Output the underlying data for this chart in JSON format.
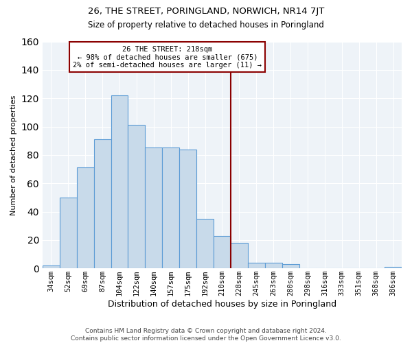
{
  "title": "26, THE STREET, PORINGLAND, NORWICH, NR14 7JT",
  "subtitle": "Size of property relative to detached houses in Poringland",
  "xlabel": "Distribution of detached houses by size in Poringland",
  "ylabel": "Number of detached properties",
  "bar_labels": [
    "34sqm",
    "52sqm",
    "69sqm",
    "87sqm",
    "104sqm",
    "122sqm",
    "140sqm",
    "157sqm",
    "175sqm",
    "192sqm",
    "210sqm",
    "228sqm",
    "245sqm",
    "263sqm",
    "280sqm",
    "298sqm",
    "316sqm",
    "333sqm",
    "351sqm",
    "368sqm",
    "386sqm"
  ],
  "bar_values": [
    2,
    50,
    71,
    91,
    122,
    101,
    85,
    85,
    84,
    35,
    23,
    18,
    4,
    4,
    3,
    0,
    0,
    0,
    0,
    0,
    1
  ],
  "bar_color": "#c8daea",
  "bar_edge_color": "#5b9bd5",
  "vline_x": 10.5,
  "vline_color": "#8b0000",
  "annotation_text": "26 THE STREET: 218sqm\n← 98% of detached houses are smaller (675)\n2% of semi-detached houses are larger (11) →",
  "annotation_box_color": "#ffffff",
  "annotation_box_edge": "#8b0000",
  "ylim": [
    0,
    160
  ],
  "yticks": [
    0,
    20,
    40,
    60,
    80,
    100,
    120,
    140,
    160
  ],
  "bg_color": "#eef3f8",
  "grid_color": "#ffffff",
  "footer": "Contains HM Land Registry data © Crown copyright and database right 2024.\nContains public sector information licensed under the Open Government Licence v3.0."
}
